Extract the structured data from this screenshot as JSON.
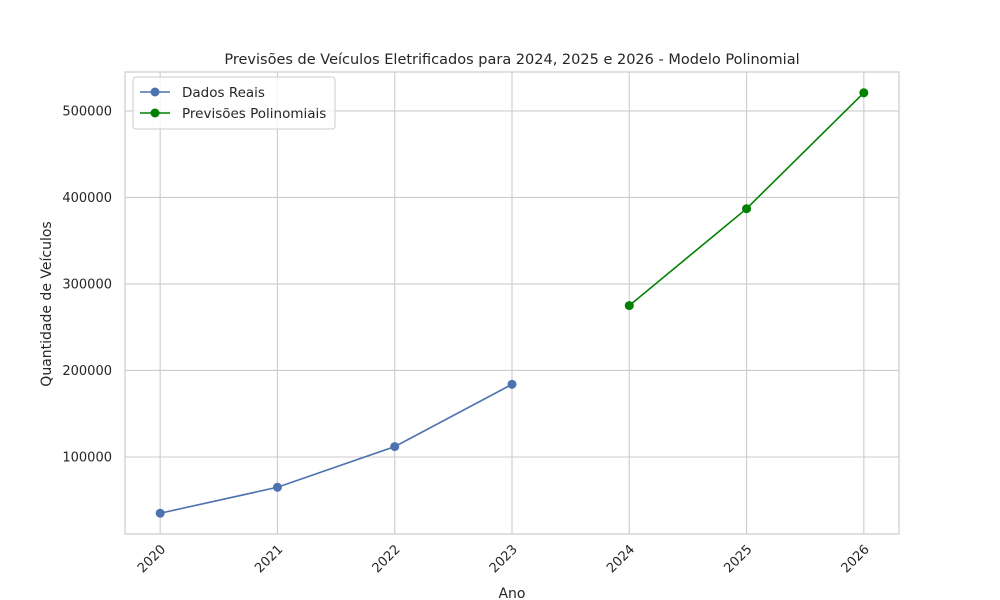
{
  "chart_data": {
    "type": "line",
    "title": "Previsões de Veículos Eletrificados para 2024, 2025 e 2026 - Modelo Polinomial",
    "xlabel": "Ano",
    "ylabel": "Quantidade de Veículos",
    "x_ticks": [
      "2020",
      "2021",
      "2022",
      "2023",
      "2024",
      "2025",
      "2026"
    ],
    "y_ticks": [
      100000,
      200000,
      300000,
      400000,
      500000
    ],
    "y_tick_labels": [
      "100000",
      "200000",
      "300000",
      "400000",
      "500000"
    ],
    "xlim": [
      2019.7,
      2026.3
    ],
    "ylim": [
      11000,
      545000
    ],
    "grid": true,
    "legend_position": "top-left",
    "series": [
      {
        "name": "Dados Reais",
        "color": "#4c72b0",
        "marker": "circle",
        "x": [
          2020,
          2021,
          2022,
          2023
        ],
        "y": [
          35000,
          65000,
          112000,
          184000
        ]
      },
      {
        "name": "Previsões Polinomiais",
        "color": "#008000",
        "marker": "circle",
        "x": [
          2024,
          2025,
          2026
        ],
        "y": [
          275000,
          387000,
          521000
        ]
      }
    ]
  }
}
